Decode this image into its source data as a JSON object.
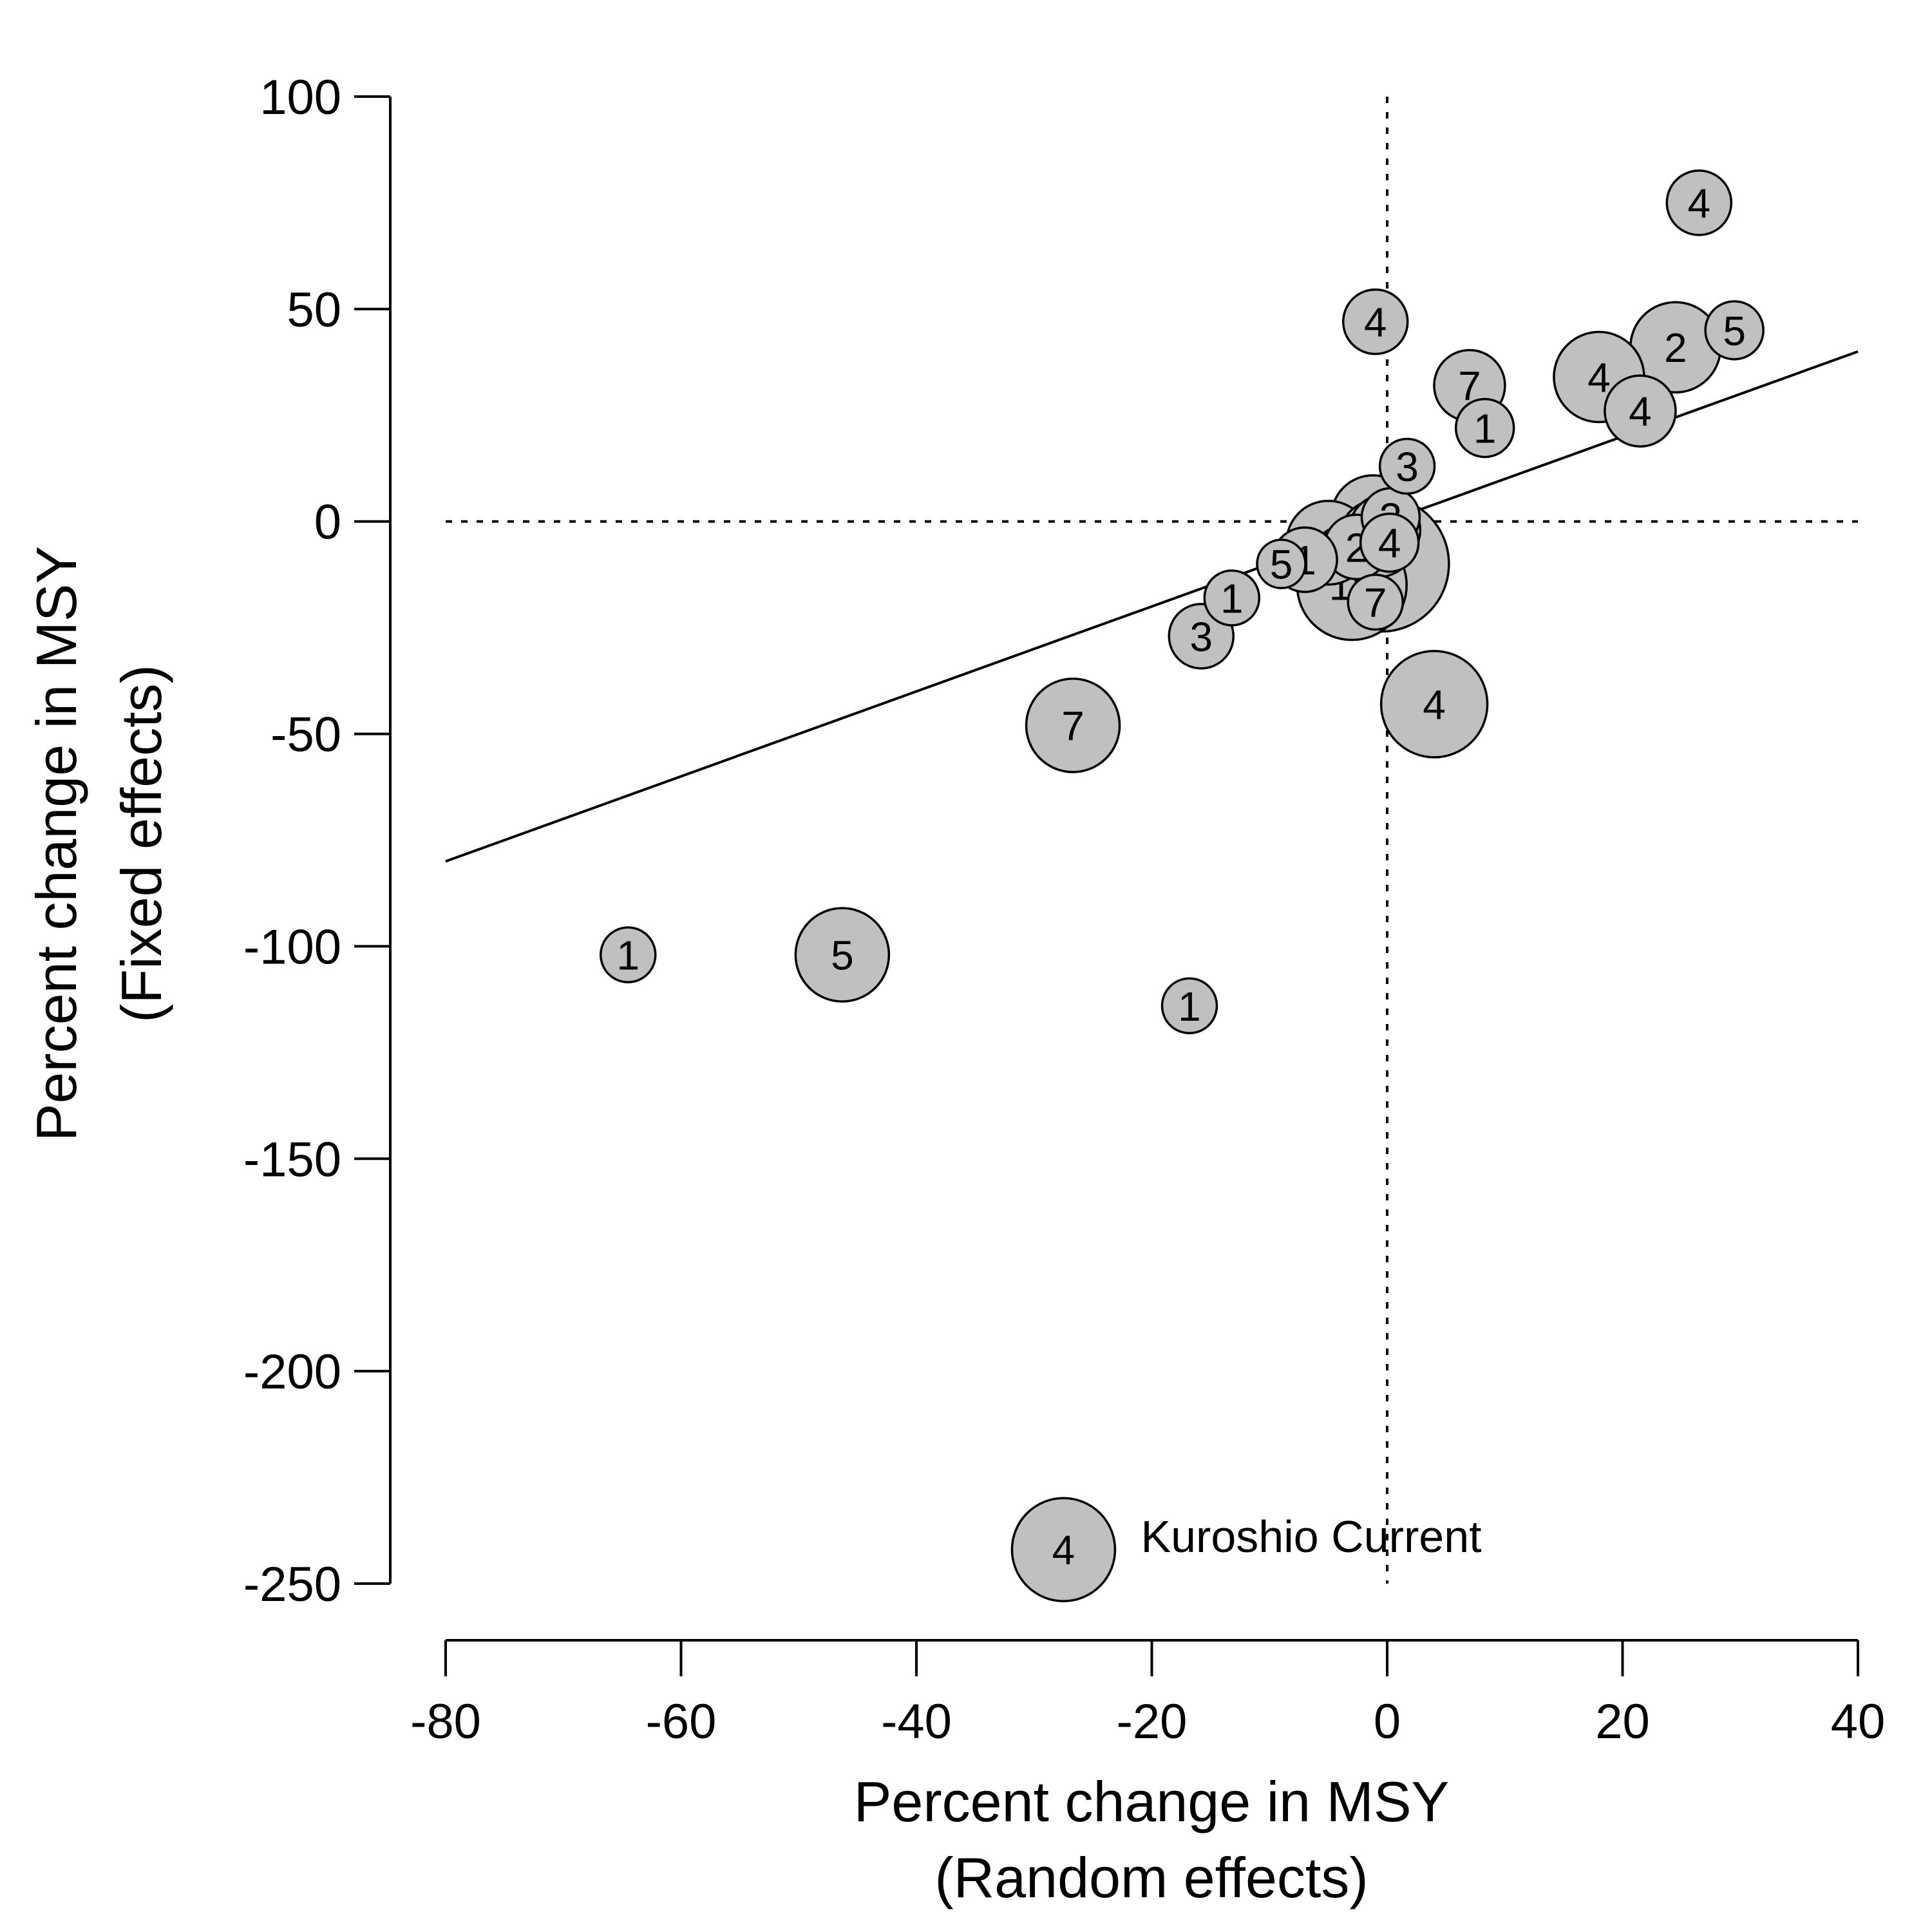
{
  "chart_data": {
    "type": "scatter",
    "title": "",
    "xlabel": [
      "Percent change in MSY",
      "(Random effects)"
    ],
    "ylabel": [
      "Percent change in MSY",
      "(Fixed effects)"
    ],
    "xlim": [
      -80,
      40
    ],
    "ylim": [
      -250,
      100
    ],
    "xticks": [
      "-80",
      "-60",
      "-40",
      "-20",
      "0",
      "20",
      "40"
    ],
    "yticks": [
      "100",
      "50",
      "0",
      "-50",
      "-100",
      "-150",
      "-200",
      "-250"
    ],
    "reference_lines": {
      "x": 0,
      "y": 0,
      "style": "dotted"
    },
    "fit_line": {
      "x": [
        -80,
        40
      ],
      "y": [
        -80,
        40
      ]
    },
    "bubble_fill": "#c0c0c0",
    "bubble_stroke": "#000000",
    "points": [
      {
        "x": 26.5,
        "y": 75,
        "label": "4",
        "size": 1.0
      },
      {
        "x": -1.0,
        "y": 47,
        "label": "4",
        "size": 1.0
      },
      {
        "x": 29.5,
        "y": 45,
        "label": "5",
        "size": 0.9
      },
      {
        "x": 24.5,
        "y": 41,
        "label": "2",
        "size": 1.4
      },
      {
        "x": 18.0,
        "y": 34,
        "label": "4",
        "size": 1.4
      },
      {
        "x": 7.0,
        "y": 32,
        "label": "7",
        "size": 1.1
      },
      {
        "x": 21.5,
        "y": 26,
        "label": "4",
        "size": 1.1
      },
      {
        "x": 8.3,
        "y": 22,
        "label": "1",
        "size": 0.9
      },
      {
        "x": 1.7,
        "y": 13,
        "label": "3",
        "size": 0.85
      },
      {
        "x": -1.2,
        "y": 1,
        "label": "8",
        "size": 1.3
      },
      {
        "x": 0.3,
        "y": 1,
        "label": "3",
        "size": 0.9
      },
      {
        "x": -0.2,
        "y": -2,
        "label": "2",
        "size": 1.1
      },
      {
        "x": -5.0,
        "y": -5,
        "label": "1",
        "size": 1.3
      },
      {
        "x": -2.6,
        "y": -6,
        "label": "2",
        "size": 1.0
      },
      {
        "x": -0.8,
        "y": -4,
        "label": "4",
        "size": 1.2
      },
      {
        "x": 0.2,
        "y": -5,
        "label": "4",
        "size": 0.9
      },
      {
        "x": -0.5,
        "y": -10,
        "label": "3",
        "size": 2.1
      },
      {
        "x": -9.0,
        "y": -10,
        "label": "5",
        "size": 0.75
      },
      {
        "x": -7.0,
        "y": -9,
        "label": "1",
        "size": 1.0
      },
      {
        "x": -3.0,
        "y": -15,
        "label": "15",
        "size": 1.7
      },
      {
        "x": -1.0,
        "y": -19,
        "label": "7",
        "size": 0.85
      },
      {
        "x": -13.2,
        "y": -18,
        "label": "1",
        "size": 0.85
      },
      {
        "x": -15.8,
        "y": -27,
        "label": "3",
        "size": 1.0
      },
      {
        "x": 4.0,
        "y": -43,
        "label": "4",
        "size": 1.65
      },
      {
        "x": -26.7,
        "y": -48,
        "label": "7",
        "size": 1.45
      },
      {
        "x": -64.5,
        "y": -102,
        "label": "1",
        "size": 0.85
      },
      {
        "x": -46.3,
        "y": -102,
        "label": "5",
        "size": 1.45
      },
      {
        "x": -16.8,
        "y": -114,
        "label": "1",
        "size": 0.85
      },
      {
        "x": -27.5,
        "y": -242,
        "label": "4",
        "size": 1.6,
        "annotation": "Kuroshio Current"
      }
    ]
  }
}
